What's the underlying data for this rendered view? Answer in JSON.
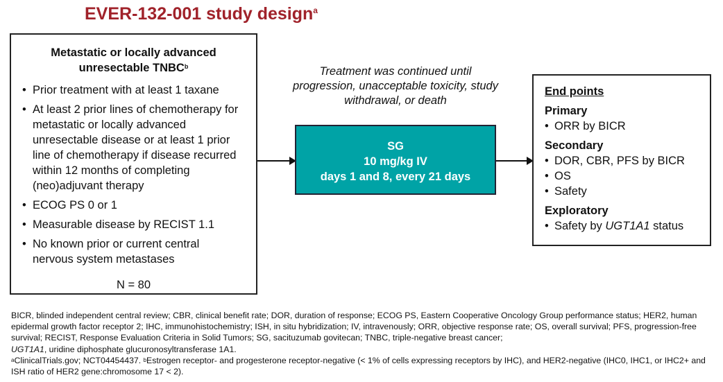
{
  "title": {
    "text": "EVER-132-001 study design",
    "sup": "a"
  },
  "eligibility": {
    "heading_line1": "Metastatic or locally advanced",
    "heading_line2": "unresectable TNBC",
    "heading_sup": "b",
    "criteria": [
      "Prior treatment with at least 1 taxane",
      "At least 2 prior lines of chemotherapy for metastatic or locally advanced unresectable disease or at least 1 prior line of chemotherapy if disease recurred within 12 months of completing (neo)adjuvant therapy",
      "ECOG PS 0 or 1",
      "Measurable disease by RECIST 1.1",
      "No known prior or current central nervous system metastases"
    ],
    "n": "N = 80"
  },
  "treatment_note": "Treatment was continued until progression, unacceptable toxicity, study withdrawal, or death",
  "treatment": {
    "line1": "SG",
    "line2": "10 mg/kg IV",
    "line3": "days 1 and 8, every 21 days",
    "color": "#00a3a6"
  },
  "endpoints": {
    "heading": "End points",
    "primary": {
      "label": "Primary",
      "items": [
        "ORR by BICR"
      ]
    },
    "secondary": {
      "label": "Secondary",
      "items": [
        "DOR, CBR, PFS by BICR",
        "OS",
        "Safety"
      ]
    },
    "exploratory": {
      "label": "Exploratory",
      "item_prefix": "Safety by ",
      "item_gene": "UGT1A1",
      "item_suffix": " status"
    }
  },
  "footnotes": {
    "abbrev": "BICR, blinded independent central review; CBR, clinical benefit rate; DOR, duration of response; ECOG PS, Eastern Cooperative Oncology Group performance status; HER2, human epidermal growth factor receptor 2; IHC, immunohistochemistry; ISH, in situ hybridization; IV, intravenously; ORR, objective response rate; OS, overall survival; PFS, progression-free survival; RECIST, Response Evaluation Criteria in Solid Tumors; SG, sacituzumab govitecan; TNBC, triple-negative breast cancer;",
    "ugt_gene": "UGT1A1",
    "ugt_text": ", uridine diphosphate glucuronosyltransferase 1A1.",
    "a_mark": "a",
    "a_text": "ClinicalTrials.gov; NCT04454437. ",
    "b_mark": "b",
    "b_text": "Estrogen receptor- and progesterone receptor-negative (< 1% of cells expressing receptors by IHC), and HER2-negative (IHC0, IHC1, or IHC2+ and ISH ratio of HER2 gene:chromosome 17 < 2)."
  }
}
